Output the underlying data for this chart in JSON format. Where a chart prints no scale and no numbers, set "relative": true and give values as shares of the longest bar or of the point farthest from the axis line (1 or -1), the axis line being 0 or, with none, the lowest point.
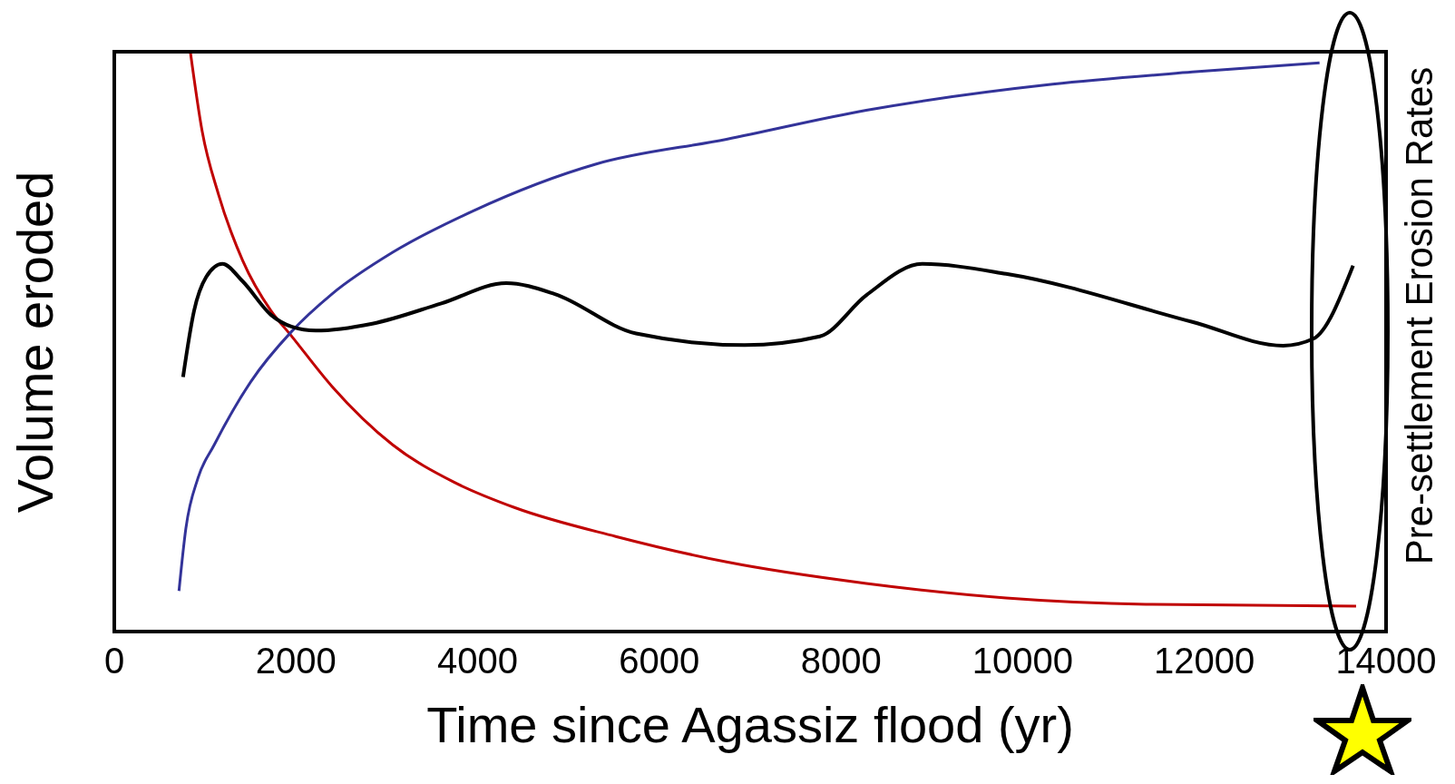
{
  "chart_data": {
    "type": "line",
    "xlabel": "Time since Agassiz flood (yr)",
    "ylabel": "Volume eroded",
    "annotations": [
      "Pre-settlement Erosion Rates"
    ],
    "relative": true,
    "xlim": [
      0,
      14000
    ],
    "xticks": [
      0,
      2000,
      4000,
      6000,
      8000,
      10000,
      12000,
      14000
    ],
    "series": [
      {
        "color": "#c00000",
        "x": [
          837,
          967,
          1145,
          1413,
          1726,
          1949,
          2395,
          3065,
          3735,
          4404,
          5520,
          6740,
          8278,
          9817,
          11355,
          13670
        ],
        "values": [
          1,
          0.863,
          0.755,
          0.64,
          0.553,
          0.51,
          0.423,
          0.322,
          0.258,
          0.214,
          0.164,
          0.12,
          0.083,
          0.058,
          0.047,
          0.044
        ]
      },
      {
        "color": "#333399",
        "x": [
          712,
          788,
          922,
          1100,
          1503,
          1949,
          2395,
          3065,
          3958,
          5297,
          6740,
          8278,
          10330,
          11868,
          13268
        ],
        "values": [
          0.07,
          0.178,
          0.265,
          0.322,
          0.431,
          0.517,
          0.582,
          0.654,
          0.726,
          0.806,
          0.849,
          0.899,
          0.944,
          0.965,
          0.981
        ]
      },
      {
        "color": "#000000",
        "x": [
          757,
          878,
          1010,
          1190,
          1413,
          1726,
          1949,
          2217,
          2840,
          3600,
          4315,
          4850,
          5744,
          6940,
          7766,
          8278,
          8894,
          9817,
          11868,
          12868,
          13200,
          13637
        ],
        "values": [
          0.439,
          0.553,
          0.611,
          0.634,
          0.604,
          0.546,
          0.526,
          0.519,
          0.531,
          0.566,
          0.601,
          0.582,
          0.514,
          0.494,
          0.509,
          0.58,
          0.634,
          0.617,
          0.534,
          0.493,
          0.505,
          0.631
        ]
      }
    ]
  }
}
